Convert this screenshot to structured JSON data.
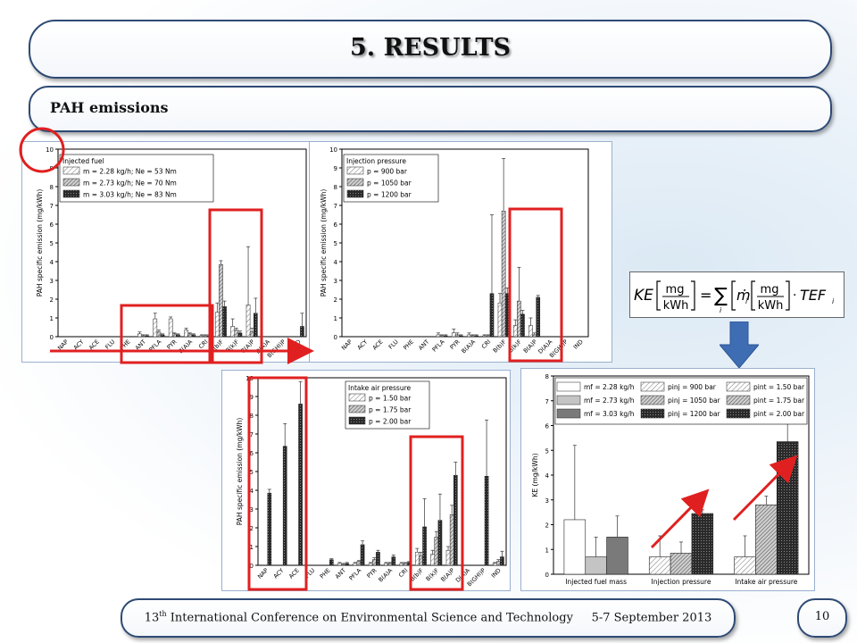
{
  "slide": {
    "title": "5. RESULTS",
    "subtitle": "PAH emissions",
    "footer_prefix": "13",
    "footer_sup": "th",
    "footer_text": " International Conference on Environmental Science and Technology     5-7 September 2013",
    "page_number": "10"
  },
  "formula": {
    "lhs": "KE",
    "unit_num": "mg",
    "unit_den": "kWh",
    "sum_index": "i",
    "term": "ṁ",
    "term_sub": "i",
    "tef": "TEF",
    "tef_sub": "i"
  },
  "colors": {
    "frame": "#2e4a74",
    "highlight": "#e02020",
    "formula_arrow": "#3f6db3",
    "light": "#d8d8d8",
    "mid": "#8c8c8c",
    "dark": "#303030"
  },
  "chart_data": [
    {
      "type": "bar",
      "ylabel": "PAH specific emission (mg/kWh)",
      "ylim": [
        0,
        10
      ],
      "categories": [
        "NAP",
        "ACY",
        "ACE",
        "FLU",
        "PHE",
        "ANT",
        "PFLA",
        "PYR",
        "B(A)A",
        "CRI",
        "B(b)F",
        "B(k)F",
        "B(A)P",
        "D(A)A",
        "B(GHI)P",
        "IND"
      ],
      "legend_title": "Injected fuel",
      "series": [
        {
          "name": "m = 2.28 kg/h; Ne = 53 Nm",
          "shade": "light",
          "values": [
            0,
            0,
            0,
            0,
            0,
            0.15,
            0.95,
            0.95,
            0.35,
            0.05,
            1.3,
            0.55,
            1.7,
            0,
            0,
            0
          ],
          "errors": [
            0,
            0,
            0,
            0,
            0,
            0.1,
            0.3,
            0.1,
            0.1,
            0.05,
            0.5,
            0.4,
            3.1,
            0,
            0,
            0
          ]
        },
        {
          "name": "m = 2.73 kg/h; Ne = 70 Nm",
          "shade": "mid",
          "values": [
            0,
            0,
            0,
            0,
            0,
            0.05,
            0.25,
            0.15,
            0.15,
            0.05,
            3.85,
            0.35,
            0.25,
            0,
            0,
            0
          ],
          "errors": [
            0,
            0,
            0,
            0,
            0,
            0.05,
            0.1,
            0.05,
            0.05,
            0.05,
            0.2,
            0.1,
            0.2,
            0,
            0,
            0
          ]
        },
        {
          "name": "m = 3.03 kg/h; Ne = 83 Nm",
          "shade": "dark",
          "values": [
            0,
            0,
            0,
            0,
            0,
            0.05,
            0.1,
            0.1,
            0.1,
            0.05,
            1.6,
            0.2,
            1.25,
            0,
            0,
            0.55
          ],
          "errors": [
            0,
            0,
            0,
            0,
            0,
            0.05,
            0.05,
            0.05,
            0.05,
            0.05,
            0.3,
            0.1,
            0.8,
            0,
            0,
            0.7
          ]
        }
      ]
    },
    {
      "type": "bar",
      "ylabel": "PAH specific emission (mg/kWh)",
      "ylim": [
        0,
        10
      ],
      "categories": [
        "NAP",
        "ACY",
        "ACE",
        "FLU",
        "PHE",
        "ANT",
        "PFLA",
        "PYR",
        "B(A)A",
        "CRI",
        "B(b)F",
        "B(k)F",
        "B(A)P",
        "D(A)A",
        "B(GHI)P",
        "IND"
      ],
      "legend_title": "Injection pressure",
      "series": [
        {
          "name": "p =   900 bar",
          "shade": "light",
          "values": [
            0,
            0,
            0,
            0,
            0,
            0,
            0.1,
            0.2,
            0.1,
            0.05,
            1.8,
            0.6,
            0.6,
            0,
            0,
            0
          ],
          "errors": [
            0,
            0,
            0,
            0,
            0,
            0,
            0.1,
            0.2,
            0.1,
            0.05,
            0.5,
            0.3,
            0.4,
            0,
            0,
            0
          ]
        },
        {
          "name": "p = 1050 bar",
          "shade": "mid",
          "values": [
            0,
            0,
            0,
            0,
            0,
            0,
            0.05,
            0.1,
            0.05,
            0.05,
            6.7,
            1.9,
            0.1,
            0,
            0,
            0
          ],
          "errors": [
            0,
            0,
            0,
            0,
            0,
            0,
            0.05,
            0.1,
            0.05,
            0.05,
            2.8,
            1.8,
            0.1,
            0,
            0,
            0
          ]
        },
        {
          "name": "p = 1200 bar",
          "shade": "dark",
          "values": [
            0,
            0,
            0,
            0,
            0,
            0,
            0.05,
            0.05,
            0.05,
            2.3,
            2.3,
            1.2,
            2.1,
            0,
            0,
            0
          ],
          "errors": [
            0,
            0,
            0,
            0,
            0,
            0,
            0.05,
            0.05,
            0.05,
            4.2,
            0.3,
            0.2,
            0.1,
            0,
            0,
            0
          ]
        }
      ]
    },
    {
      "type": "bar",
      "ylabel": "PAH specific emission (mg/kWh)",
      "ylim": [
        0,
        10
      ],
      "categories": [
        "NAP",
        "ACY",
        "ACE",
        "FLU",
        "PHE",
        "ANT",
        "PFLA",
        "PYR",
        "B(A)A",
        "CRI",
        "B(b)F",
        "B(k)F",
        "B(A)P",
        "D(A)A",
        "B(GHI)P",
        "IND"
      ],
      "legend_title": "Intake air pressure",
      "series": [
        {
          "name": "p = 1.50 bar",
          "shade": "light",
          "values": [
            0,
            0,
            0,
            0,
            0,
            0.1,
            0.1,
            0.1,
            0.1,
            0.1,
            0.7,
            0.6,
            0.8,
            0,
            0,
            0.1
          ],
          "errors": [
            0,
            0,
            0,
            0,
            0,
            0.05,
            0.05,
            0.05,
            0.05,
            0.05,
            0.2,
            0.2,
            0.2,
            0,
            0,
            0.05
          ]
        },
        {
          "name": "p = 1.75 bar",
          "shade": "mid",
          "values": [
            0,
            0,
            0,
            0,
            0,
            0.05,
            0.2,
            0.3,
            0.1,
            0.1,
            0.5,
            1.5,
            2.7,
            0,
            0,
            0.2
          ],
          "errors": [
            0,
            0,
            0,
            0,
            0,
            0.05,
            0.05,
            0.1,
            0.05,
            0.05,
            0.2,
            0.3,
            0.5,
            0,
            0,
            0.1
          ]
        },
        {
          "name": "p = 2.00 bar",
          "shade": "dark",
          "values": [
            3.85,
            6.35,
            8.6,
            0,
            0.3,
            0.1,
            1.1,
            0.7,
            0.45,
            0.15,
            2.05,
            2.4,
            4.8,
            0,
            4.75,
            0.45
          ],
          "errors": [
            0.2,
            1.2,
            1.2,
            0,
            0.05,
            0.05,
            0.2,
            0.1,
            0.1,
            0.05,
            1.5,
            1.4,
            0.7,
            0,
            3.0,
            0.3
          ]
        }
      ]
    },
    {
      "type": "bar",
      "ylabel": "KE (mg/kWh)",
      "ylim": [
        0,
        8
      ],
      "groups": [
        {
          "label": "Injected fuel mass",
          "bars": [
            {
              "name": "mf = 2.28 kg/h",
              "shade": "white",
              "value": 2.2,
              "error": 3.0
            },
            {
              "name": "mf = 2.73 kg/h",
              "shade": "lightgray",
              "value": 0.7,
              "error": 0.8
            },
            {
              "name": "mf = 3.03 kg/h",
              "shade": "gray",
              "value": 1.5,
              "error": 0.85
            }
          ]
        },
        {
          "label": "Injection pressure",
          "bars": [
            {
              "name": "pinj =   900 bar",
              "shade": "light",
              "value": 0.7,
              "error": 0.85
            },
            {
              "name": "pinj = 1050 bar",
              "shade": "mid",
              "value": 0.85,
              "error": 0.45
            },
            {
              "name": "pinj = 1200 bar",
              "shade": "dark",
              "value": 2.45,
              "error": 0.15
            }
          ]
        },
        {
          "label": "Intake air pressure",
          "bars": [
            {
              "name": "pint = 1.50 bar",
              "shade": "light",
              "value": 0.7,
              "error": 0.85
            },
            {
              "name": "pint = 1.75 bar",
              "shade": "mid",
              "value": 2.8,
              "error": 0.35
            },
            {
              "name": "pint = 2.00 bar",
              "shade": "dark",
              "value": 5.35,
              "error": 0.8
            }
          ]
        }
      ]
    }
  ]
}
